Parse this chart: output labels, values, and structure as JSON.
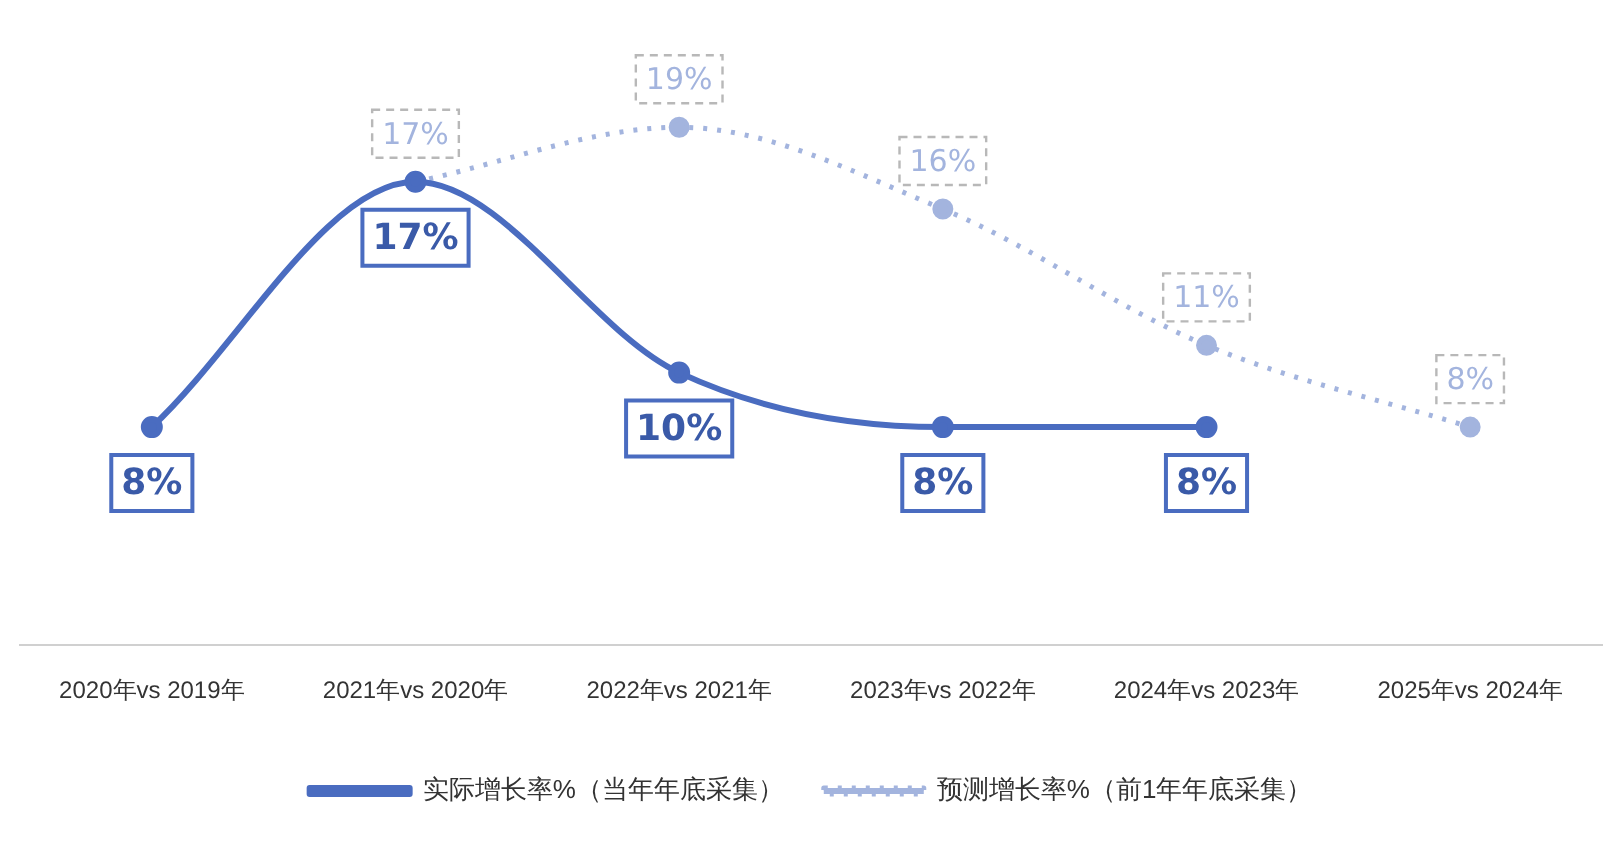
{
  "chart_data": {
    "type": "line",
    "categories": [
      "2020年vs 2019年",
      "2021年vs 2020年",
      "2022年vs 2021年",
      "2023年vs 2022年",
      "2024年vs 2023年",
      "2025年vs 2024年"
    ],
    "series": [
      {
        "name": "实际增长率%（当年年底采集）",
        "color": "#4a6cc0",
        "values": [
          8,
          17,
          10,
          8,
          8,
          null
        ],
        "value_labels": [
          "8%",
          "17%",
          "10%",
          "8%",
          "8%",
          null
        ],
        "line_style": "solid"
      },
      {
        "name": "预测增长率%（前1年年底采集）",
        "color": "#a3b4de",
        "values": [
          null,
          17,
          19,
          16,
          11,
          8
        ],
        "value_labels": [
          null,
          "17%",
          "19%",
          "16%",
          "11%",
          "8%"
        ],
        "line_style": "dotted"
      }
    ],
    "legend": "bottom",
    "marker": "circle",
    "grid": false,
    "tick_labels": "x"
  }
}
